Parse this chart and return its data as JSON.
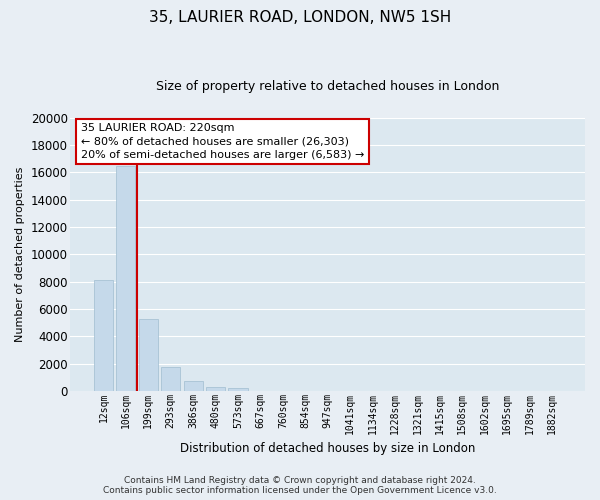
{
  "title": "35, LAURIER ROAD, LONDON, NW5 1SH",
  "subtitle": "Size of property relative to detached houses in London",
  "bar_labels": [
    "12sqm",
    "106sqm",
    "199sqm",
    "293sqm",
    "386sqm",
    "480sqm",
    "573sqm",
    "667sqm",
    "760sqm",
    "854sqm",
    "947sqm",
    "1041sqm",
    "1134sqm",
    "1228sqm",
    "1321sqm",
    "1415sqm",
    "1508sqm",
    "1602sqm",
    "1695sqm",
    "1789sqm",
    "1882sqm"
  ],
  "bar_values": [
    8100,
    16500,
    5300,
    1800,
    750,
    300,
    200,
    0,
    0,
    0,
    0,
    0,
    0,
    0,
    0,
    0,
    0,
    0,
    0,
    0,
    0
  ],
  "bar_color": "#c5d9ea",
  "bar_edge_color": "#a0bdd0",
  "ylim": [
    0,
    20000
  ],
  "yticks": [
    0,
    2000,
    4000,
    6000,
    8000,
    10000,
    12000,
    14000,
    16000,
    18000,
    20000
  ],
  "ylabel": "Number of detached properties",
  "xlabel": "Distribution of detached houses by size in London",
  "property_line_x": 1.5,
  "property_line_color": "#cc0000",
  "annotation_title": "35 LAURIER ROAD: 220sqm",
  "annotation_line1": "← 80% of detached houses are smaller (26,303)",
  "annotation_line2": "20% of semi-detached houses are larger (6,583) →",
  "annotation_box_facecolor": "#ffffff",
  "annotation_box_edgecolor": "#cc0000",
  "footer_line1": "Contains HM Land Registry data © Crown copyright and database right 2024.",
  "footer_line2": "Contains public sector information licensed under the Open Government Licence v3.0.",
  "bg_color": "#e8eef4",
  "plot_bg_color": "#dce8f0",
  "grid_color": "#ffffff",
  "title_fontsize": 11,
  "subtitle_fontsize": 9,
  "ylabel_fontsize": 8,
  "xlabel_fontsize": 8.5,
  "tick_fontsize": 7,
  "annotation_fontsize": 8,
  "footer_fontsize": 6.5
}
